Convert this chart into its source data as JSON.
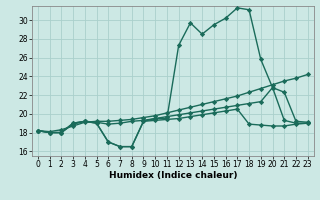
{
  "xlabel": "Humidex (Indice chaleur)",
  "bg_color": "#cce8e4",
  "grid_color": "#aad0cc",
  "line_color": "#1a6b5a",
  "xlim": [
    -0.5,
    23.5
  ],
  "ylim": [
    15.5,
    31.5
  ],
  "xticks": [
    0,
    1,
    2,
    3,
    4,
    5,
    6,
    7,
    8,
    9,
    10,
    11,
    12,
    13,
    14,
    15,
    16,
    17,
    18,
    19,
    20,
    21,
    22,
    23
  ],
  "yticks": [
    16,
    18,
    20,
    22,
    24,
    26,
    28,
    30
  ],
  "line1_y": [
    18.2,
    18.0,
    18.0,
    19.0,
    19.2,
    19.0,
    17.0,
    16.5,
    16.5,
    19.2,
    19.5,
    19.5,
    27.3,
    29.7,
    28.5,
    29.5,
    30.2,
    31.3,
    31.1,
    25.8,
    22.8,
    19.3,
    19.0,
    19.0
  ],
  "line2_y": [
    18.2,
    18.1,
    18.3,
    18.7,
    19.1,
    19.2,
    19.2,
    19.3,
    19.4,
    19.6,
    19.8,
    20.1,
    20.4,
    20.7,
    21.0,
    21.3,
    21.6,
    21.9,
    22.3,
    22.7,
    23.1,
    23.5,
    23.8,
    24.2
  ],
  "line3_y": [
    18.2,
    18.0,
    18.0,
    18.9,
    19.2,
    19.1,
    18.9,
    19.0,
    19.2,
    19.3,
    19.5,
    19.7,
    19.9,
    20.1,
    20.3,
    20.5,
    20.7,
    20.9,
    21.1,
    21.3,
    22.8,
    22.3,
    19.2,
    19.1
  ],
  "line4_y": [
    18.2,
    18.0,
    18.0,
    19.0,
    19.2,
    19.0,
    17.0,
    16.5,
    16.5,
    19.2,
    19.3,
    19.4,
    19.5,
    19.7,
    19.9,
    20.1,
    20.3,
    20.5,
    18.9,
    18.8,
    18.7,
    18.7,
    18.9,
    19.0
  ]
}
